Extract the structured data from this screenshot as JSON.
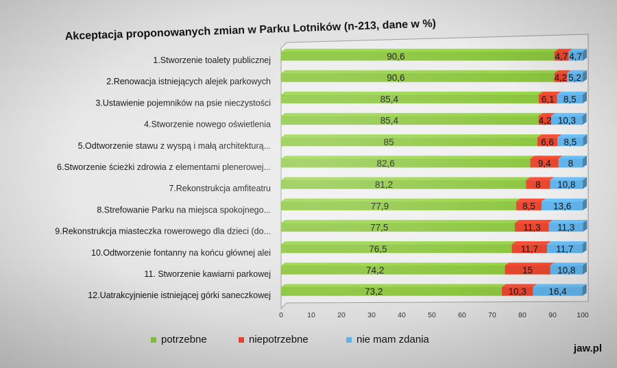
{
  "chart_data": {
    "type": "bar",
    "stacked": true,
    "orientation": "horizontal",
    "title": "Akceptacja proponowanych zmian w Parku Lotników (n-213, dane w %)",
    "categories": [
      "1.Stworzenie toalety publicznej",
      "2.Renowacja istniejących alejek parkowych",
      "3.Ustawienie pojemników na psie nieczystości",
      "4.Stworzenie nowego oświetlenia",
      "5.Odtworzenie stawu z wyspą i małą architekturą...",
      "6.Stworzenie ścieżki zdrowia z elementami plenerowej...",
      "7.Rekonstrukcja amfiteatru",
      "8.Strefowanie Parku na miejsca spokojnego...",
      "9.Rekonstrukcja miasteczka rowerowego dla dzieci (do...",
      "10.Odtworzenie fontanny na końcu głównej alei",
      "11. Stworzenie kawiarni parkowej",
      "12.Uatrakcyjnienie istniejącej górki saneczkowej"
    ],
    "series": [
      {
        "name": "potrzebne",
        "color": "#8cc63f",
        "values": [
          90.6,
          90.6,
          85.4,
          85.4,
          85,
          82.6,
          81.2,
          77.9,
          77.5,
          76.5,
          74.2,
          73.2
        ],
        "labels": [
          "90,6",
          "90,6",
          "85,4",
          "85,4",
          "85",
          "82,6",
          "81,2",
          "77,9",
          "77,5",
          "76,5",
          "74,2",
          "73,2"
        ]
      },
      {
        "name": "niepotrzebne",
        "color": "#e8472f",
        "values": [
          4.7,
          4.2,
          6.1,
          4.2,
          6.6,
          9.4,
          8,
          8.5,
          11.3,
          11.7,
          15,
          10.3
        ],
        "labels": [
          "4,7",
          "4,2",
          "6,1",
          "4,2",
          "6,6",
          "9,4",
          "8",
          "8,5",
          "11,3",
          "11,7",
          "15",
          "10,3"
        ]
      },
      {
        "name": "nie mam zdania",
        "color": "#62b6ee",
        "values": [
          4.7,
          5.2,
          8.5,
          10.3,
          8.5,
          8,
          10.8,
          13.6,
          11.3,
          11.7,
          10.8,
          16.4
        ],
        "labels": [
          "4,7",
          "5,2",
          "8,5",
          "10,3",
          "8,5",
          "8",
          "10,8",
          "13,6",
          "11,3",
          "11,7",
          "10,8",
          "16,4"
        ]
      }
    ],
    "xlim": [
      0,
      100
    ],
    "xticks": [
      "0",
      "10",
      "20",
      "30",
      "40",
      "50",
      "60",
      "70",
      "80",
      "90",
      "100"
    ],
    "legend_position": "bottom",
    "grid": false
  },
  "watermark": "jaw.pl"
}
